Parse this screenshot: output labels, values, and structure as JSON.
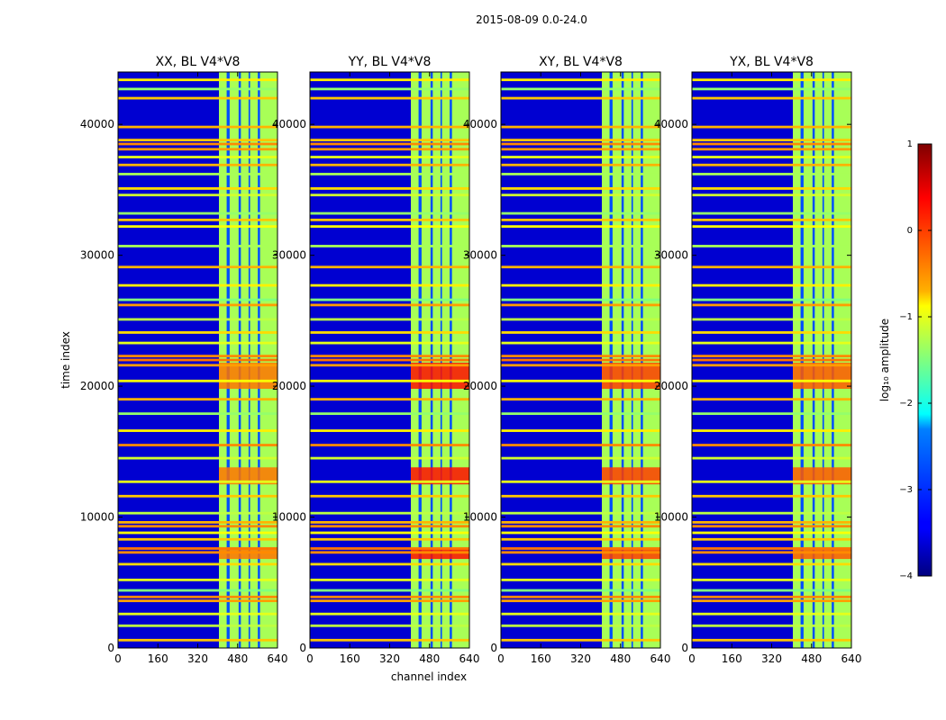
{
  "chart_data": {
    "type": "heatmap",
    "title": "2015-08-09 0.0-24.0",
    "xlabel": "channel index",
    "ylabel": "time index",
    "x_ticks": [
      "0",
      "160",
      "320",
      "480",
      "640"
    ],
    "y_ticks": [
      "0",
      "10000",
      "20000",
      "30000",
      "40000"
    ],
    "xlim": [
      0,
      640
    ],
    "ylim": [
      0,
      44000
    ],
    "panels": [
      {
        "title": "XX, BL V4*V8",
        "burst_strength": 0.45
      },
      {
        "title": "YY, BL V4*V8",
        "burst_strength": 1.0
      },
      {
        "title": "XY, BL V4*V8",
        "burst_strength": 0.75
      },
      {
        "title": "YX, BL V4*V8",
        "burst_strength": 0.6
      }
    ],
    "band_channels": [
      405,
      645
    ],
    "band_gaps": [
      [
        436,
        448
      ],
      [
        484,
        493
      ],
      [
        524,
        530
      ],
      [
        561,
        570
      ]
    ],
    "band_level": -1.3,
    "background_level": -3.6,
    "rfi_rows": [
      {
        "t": 600,
        "level": -0.6
      },
      {
        "t": 1700,
        "level": -1.2
      },
      {
        "t": 2600,
        "level": -1.0
      },
      {
        "t": 3600,
        "level": -0.4
      },
      {
        "t": 3900,
        "level": -0.3
      },
      {
        "t": 4400,
        "level": -1.5
      },
      {
        "t": 5200,
        "level": -1.0
      },
      {
        "t": 6400,
        "level": -0.7
      },
      {
        "t": 7300,
        "level": -0.3
      },
      {
        "t": 7600,
        "level": -0.2
      },
      {
        "t": 8300,
        "level": -0.6
      },
      {
        "t": 8800,
        "level": -0.9
      },
      {
        "t": 9300,
        "level": -0.3
      },
      {
        "t": 9600,
        "level": -0.5
      },
      {
        "t": 10300,
        "level": -1.2
      },
      {
        "t": 11600,
        "level": -0.6
      },
      {
        "t": 12700,
        "level": -1.0
      },
      {
        "t": 14500,
        "level": -1.1
      },
      {
        "t": 15500,
        "level": -0.3
      },
      {
        "t": 16600,
        "level": -0.8
      },
      {
        "t": 17900,
        "level": -1.4
      },
      {
        "t": 19000,
        "level": -0.5
      },
      {
        "t": 20400,
        "level": -0.9
      },
      {
        "t": 21600,
        "level": -0.4
      },
      {
        "t": 22000,
        "level": -0.2
      },
      {
        "t": 22300,
        "level": -0.3
      },
      {
        "t": 23300,
        "level": -1.0
      },
      {
        "t": 24100,
        "level": -0.7
      },
      {
        "t": 25100,
        "level": -1.2
      },
      {
        "t": 26200,
        "level": -0.4
      },
      {
        "t": 26600,
        "level": -1.5
      },
      {
        "t": 27700,
        "level": -0.8
      },
      {
        "t": 29100,
        "level": -0.5
      },
      {
        "t": 30700,
        "level": -1.3
      },
      {
        "t": 32200,
        "level": -0.9
      },
      {
        "t": 32700,
        "level": -0.6
      },
      {
        "t": 33200,
        "level": -1.4
      },
      {
        "t": 34600,
        "level": -1.1
      },
      {
        "t": 35100,
        "level": -0.7
      },
      {
        "t": 36200,
        "level": -1.3
      },
      {
        "t": 36900,
        "level": -0.5
      },
      {
        "t": 37500,
        "level": -1.0
      },
      {
        "t": 38100,
        "level": -0.4
      },
      {
        "t": 38500,
        "level": -0.3
      },
      {
        "t": 38800,
        "level": -0.6
      },
      {
        "t": 39800,
        "level": -0.5
      },
      {
        "t": 42000,
        "level": -0.6
      },
      {
        "t": 42700,
        "level": -1.4
      },
      {
        "t": 43400,
        "level": -0.8
      }
    ],
    "colorbar": {
      "label": "log₁₀ amplitude",
      "min": -4,
      "max": 1,
      "ticks": [
        "1",
        "0",
        "−1",
        "−2",
        "−3",
        "−4"
      ],
      "colormap": "jet"
    }
  }
}
